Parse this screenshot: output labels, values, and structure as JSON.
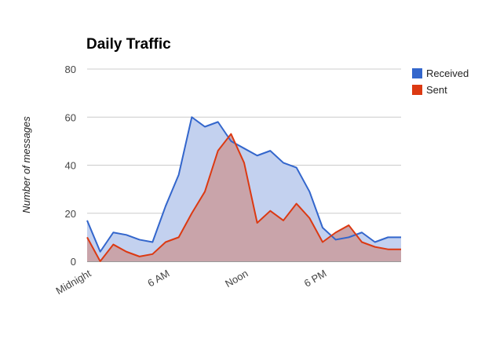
{
  "chart_data": {
    "type": "area",
    "title": "Daily Traffic",
    "xlabel": "",
    "ylabel": "Number of messages",
    "ylim": [
      0,
      80
    ],
    "yticks": [
      0,
      20,
      40,
      60,
      80
    ],
    "x": [
      0,
      1,
      2,
      3,
      4,
      5,
      6,
      7,
      8,
      9,
      10,
      11,
      12,
      13,
      14,
      15,
      16,
      17,
      18,
      19,
      20,
      21,
      22,
      23,
      24
    ],
    "xticks": [
      {
        "x": 0,
        "label": "Midnight"
      },
      {
        "x": 6,
        "label": "6 AM"
      },
      {
        "x": 12,
        "label": "Noon"
      },
      {
        "x": 18,
        "label": "6 PM"
      }
    ],
    "series": [
      {
        "name": "Received",
        "color": "#3366cc",
        "fill": "#c3d1ef",
        "values": [
          17,
          4,
          12,
          11,
          9,
          8,
          23,
          36,
          60,
          56,
          58,
          50,
          47,
          44,
          46,
          41,
          39,
          29,
          14,
          9,
          10,
          12,
          8,
          10,
          10
        ]
      },
      {
        "name": "Sent",
        "color": "#dc3912",
        "fill": "#c9a4aa",
        "values": [
          10,
          0,
          7,
          4,
          2,
          3,
          8,
          10,
          20,
          29,
          46,
          53,
          41,
          16,
          21,
          17,
          24,
          18,
          8,
          12,
          15,
          8,
          6,
          5,
          5
        ]
      }
    ],
    "legend": "right",
    "grid": true
  }
}
